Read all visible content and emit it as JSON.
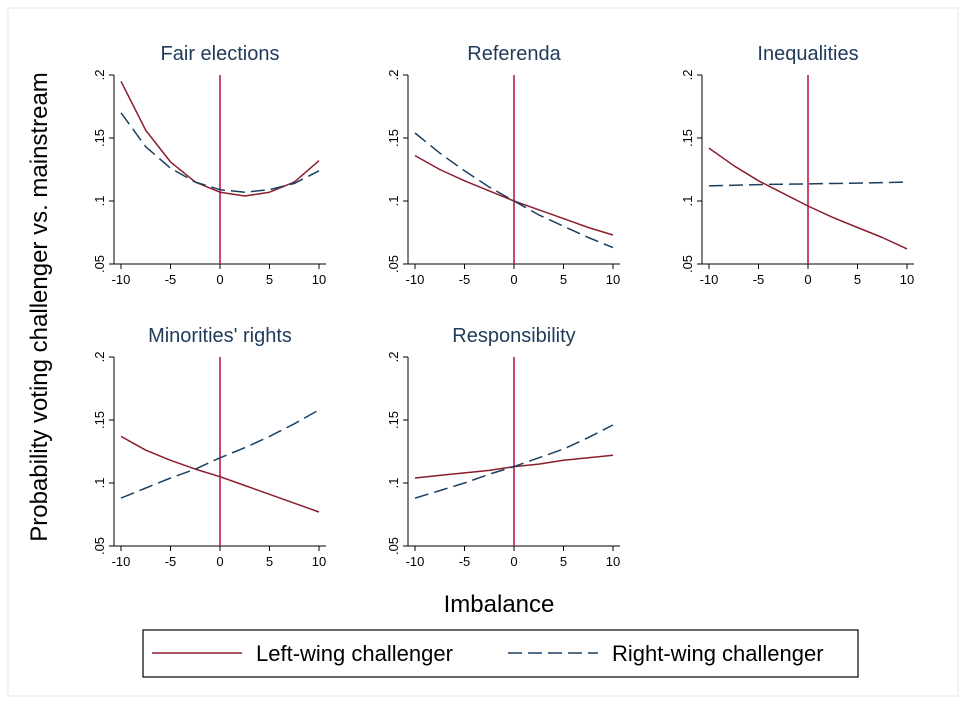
{
  "chart_data": {
    "type": "line",
    "layout": "small multiples (2 rows x 3 columns, 5 panels)",
    "ylabel": "Probability voting challenger vs. mainstream",
    "xlabel": "Imbalance",
    "xlim": [
      -10,
      10
    ],
    "ylim": [
      0.05,
      0.2
    ],
    "xticks": [
      "-10",
      "-5",
      "0",
      "5",
      "10"
    ],
    "yticks": [
      ".05",
      ".1",
      ".15",
      ".2"
    ],
    "reference_line_x": 0,
    "colors": {
      "left": "#8b1e2d",
      "right": "#1a3f5f",
      "refline": "#c0194a",
      "title": "#1f3a5a"
    },
    "legend": {
      "placement": "bottom",
      "entries": [
        {
          "label": "Left-wing challenger",
          "style": "solid",
          "color": "#8b1e2d"
        },
        {
          "label": "Right-wing challenger",
          "style": "dashed",
          "color": "#1a3f5f"
        }
      ]
    },
    "x": [
      -10,
      -7.5,
      -5,
      -2.5,
      0,
      2.5,
      5,
      7.5,
      10
    ],
    "panels": [
      {
        "title": "Fair elections",
        "series": [
          {
            "name": "Left-wing challenger",
            "values": [
              0.195,
              0.156,
              0.131,
              0.115,
              0.107,
              0.104,
              0.107,
              0.115,
              0.132
            ]
          },
          {
            "name": "Right-wing challenger",
            "values": [
              0.17,
              0.143,
              0.126,
              0.115,
              0.109,
              0.107,
              0.109,
              0.114,
              0.124
            ]
          }
        ]
      },
      {
        "title": "Referenda",
        "series": [
          {
            "name": "Left-wing challenger",
            "values": [
              0.136,
              0.125,
              0.116,
              0.108,
              0.1,
              0.093,
              0.086,
              0.079,
              0.073
            ]
          },
          {
            "name": "Right-wing challenger",
            "values": [
              0.154,
              0.138,
              0.124,
              0.111,
              0.1,
              0.089,
              0.08,
              0.071,
              0.063
            ]
          }
        ]
      },
      {
        "title": "Inequalities",
        "series": [
          {
            "name": "Left-wing challenger",
            "values": [
              0.142,
              0.128,
              0.116,
              0.106,
              0.096,
              0.087,
              0.079,
              0.071,
              0.062
            ]
          },
          {
            "name": "Right-wing challenger",
            "values": [
              0.112,
              0.1125,
              0.113,
              0.1133,
              0.1136,
              0.1139,
              0.1142,
              0.1146,
              0.115
            ]
          }
        ]
      },
      {
        "title": "Minorities' rights",
        "series": [
          {
            "name": "Left-wing challenger",
            "values": [
              0.137,
              0.126,
              0.118,
              0.111,
              0.105,
              0.098,
              0.091,
              0.084,
              0.077
            ]
          },
          {
            "name": "Right-wing challenger",
            "values": [
              0.088,
              0.096,
              0.104,
              0.111,
              0.12,
              0.128,
              0.137,
              0.147,
              0.158
            ]
          }
        ]
      },
      {
        "title": "Responsibility",
        "series": [
          {
            "name": "Left-wing challenger",
            "values": [
              0.104,
              0.106,
              0.108,
              0.11,
              0.113,
              0.115,
              0.118,
              0.12,
              0.122
            ]
          },
          {
            "name": "Right-wing challenger",
            "values": [
              0.088,
              0.094,
              0.1,
              0.107,
              0.113,
              0.12,
              0.127,
              0.136,
              0.146
            ]
          }
        ]
      }
    ]
  }
}
